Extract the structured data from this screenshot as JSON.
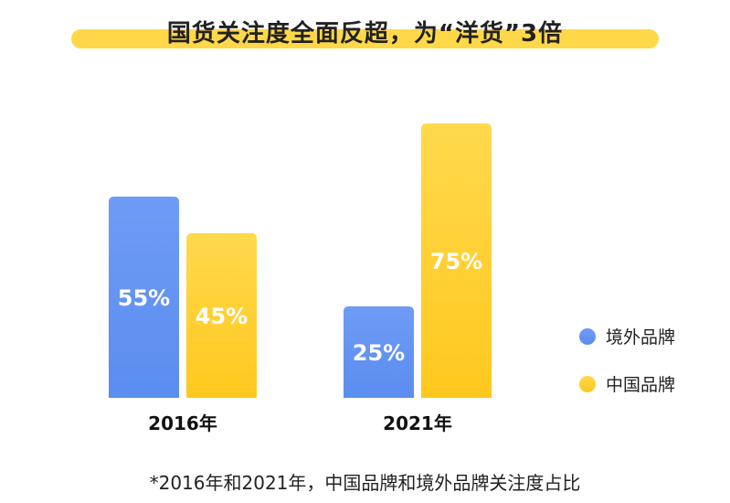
{
  "chart_data": {
    "type": "bar",
    "title": "国货关注度全面反超，为“洋货”3倍",
    "categories": [
      "2016年",
      "2021年"
    ],
    "series": [
      {
        "name": "境外品牌",
        "values": [
          55,
          25
        ],
        "labels": [
          "55%",
          "25%"
        ],
        "color": "#5B8DEF"
      },
      {
        "name": "中国品牌",
        "values": [
          45,
          75
        ],
        "labels": [
          "45%",
          "75%"
        ],
        "color": "#FFC81E"
      }
    ],
    "ylim": [
      0,
      100
    ],
    "grid": false,
    "legend_position": "right",
    "footnote": "*2016年和2021年，中国品牌和境外品牌关注度占比",
    "colors": {
      "title_highlight": "#FFD84A",
      "blue_light": "#6E9BF5",
      "yellow_light": "#FFD94D"
    }
  }
}
